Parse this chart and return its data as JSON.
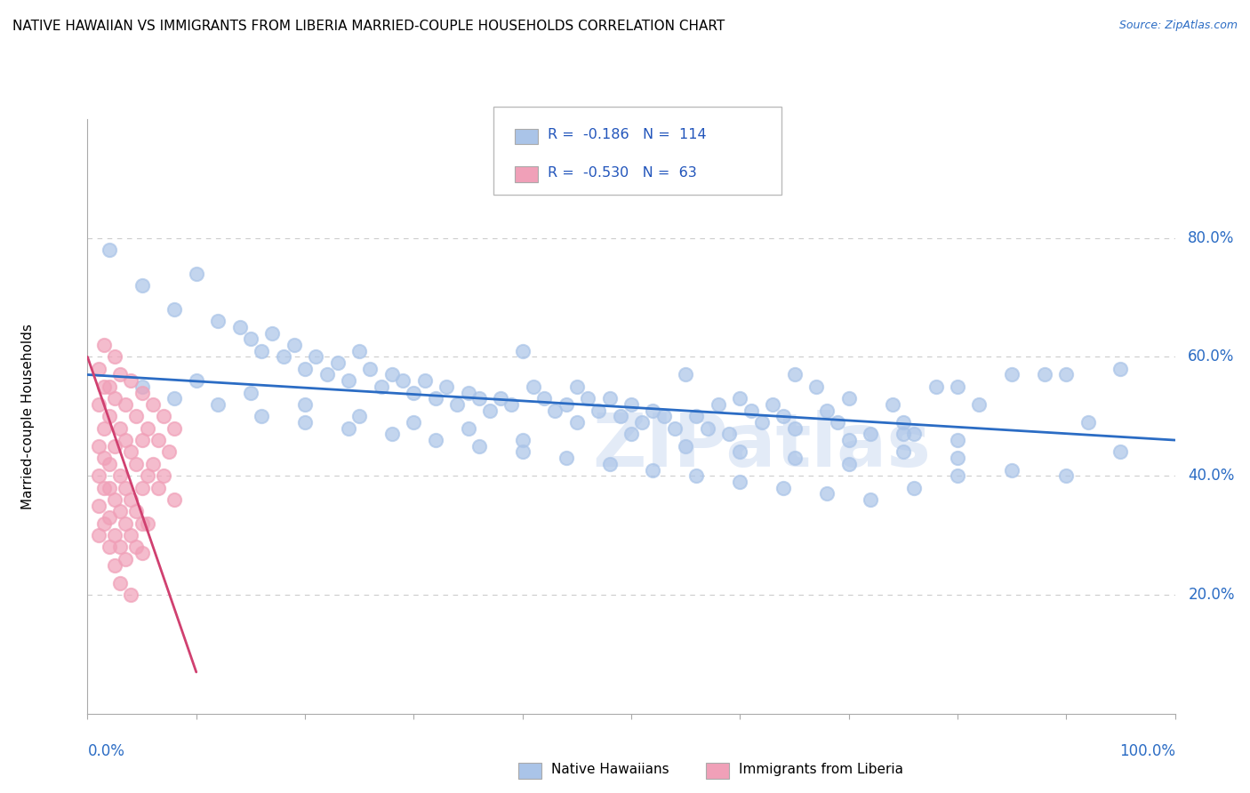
{
  "title": "NATIVE HAWAIIAN VS IMMIGRANTS FROM LIBERIA MARRIED-COUPLE HOUSEHOLDS CORRELATION CHART",
  "source": "Source: ZipAtlas.com",
  "ylabel": "Married-couple Households",
  "legend_r1_val": "-0.186",
  "legend_n1_val": "114",
  "legend_r2_val": "-0.530",
  "legend_n2_val": "63",
  "blue_color": "#aac4e8",
  "pink_color": "#f0a0b8",
  "blue_line_color": "#2b6cc4",
  "pink_line_color": "#d04070",
  "watermark": "ZIPatlas",
  "blue_scatter": [
    [
      2,
      78
    ],
    [
      5,
      72
    ],
    [
      8,
      68
    ],
    [
      10,
      74
    ],
    [
      12,
      66
    ],
    [
      14,
      65
    ],
    [
      15,
      63
    ],
    [
      16,
      61
    ],
    [
      17,
      64
    ],
    [
      18,
      60
    ],
    [
      19,
      62
    ],
    [
      20,
      58
    ],
    [
      21,
      60
    ],
    [
      22,
      57
    ],
    [
      23,
      59
    ],
    [
      24,
      56
    ],
    [
      25,
      61
    ],
    [
      26,
      58
    ],
    [
      27,
      55
    ],
    [
      28,
      57
    ],
    [
      29,
      56
    ],
    [
      30,
      54
    ],
    [
      31,
      56
    ],
    [
      32,
      53
    ],
    [
      33,
      55
    ],
    [
      34,
      52
    ],
    [
      35,
      54
    ],
    [
      36,
      53
    ],
    [
      37,
      51
    ],
    [
      38,
      53
    ],
    [
      39,
      52
    ],
    [
      40,
      61
    ],
    [
      41,
      55
    ],
    [
      42,
      53
    ],
    [
      43,
      51
    ],
    [
      44,
      52
    ],
    [
      45,
      55
    ],
    [
      46,
      53
    ],
    [
      47,
      51
    ],
    [
      48,
      53
    ],
    [
      49,
      50
    ],
    [
      50,
      52
    ],
    [
      51,
      49
    ],
    [
      52,
      51
    ],
    [
      53,
      50
    ],
    [
      54,
      48
    ],
    [
      55,
      57
    ],
    [
      56,
      50
    ],
    [
      57,
      48
    ],
    [
      58,
      52
    ],
    [
      59,
      47
    ],
    [
      60,
      53
    ],
    [
      61,
      51
    ],
    [
      62,
      49
    ],
    [
      63,
      52
    ],
    [
      64,
      50
    ],
    [
      65,
      57
    ],
    [
      67,
      55
    ],
    [
      68,
      51
    ],
    [
      69,
      49
    ],
    [
      70,
      53
    ],
    [
      72,
      47
    ],
    [
      74,
      52
    ],
    [
      75,
      49
    ],
    [
      76,
      47
    ],
    [
      78,
      55
    ],
    [
      80,
      55
    ],
    [
      82,
      52
    ],
    [
      85,
      57
    ],
    [
      88,
      57
    ],
    [
      90,
      57
    ],
    [
      92,
      49
    ],
    [
      95,
      58
    ],
    [
      10,
      56
    ],
    [
      15,
      54
    ],
    [
      20,
      52
    ],
    [
      25,
      50
    ],
    [
      30,
      49
    ],
    [
      35,
      48
    ],
    [
      40,
      46
    ],
    [
      45,
      49
    ],
    [
      50,
      47
    ],
    [
      55,
      45
    ],
    [
      60,
      44
    ],
    [
      65,
      43
    ],
    [
      70,
      42
    ],
    [
      75,
      44
    ],
    [
      80,
      43
    ],
    [
      85,
      41
    ],
    [
      90,
      40
    ],
    [
      95,
      44
    ],
    [
      5,
      55
    ],
    [
      8,
      53
    ],
    [
      12,
      52
    ],
    [
      16,
      50
    ],
    [
      20,
      49
    ],
    [
      24,
      48
    ],
    [
      28,
      47
    ],
    [
      32,
      46
    ],
    [
      36,
      45
    ],
    [
      40,
      44
    ],
    [
      44,
      43
    ],
    [
      48,
      42
    ],
    [
      52,
      41
    ],
    [
      56,
      40
    ],
    [
      60,
      39
    ],
    [
      64,
      38
    ],
    [
      68,
      37
    ],
    [
      72,
      36
    ],
    [
      76,
      38
    ],
    [
      80,
      40
    ],
    [
      65,
      48
    ],
    [
      70,
      46
    ],
    [
      75,
      47
    ],
    [
      80,
      46
    ]
  ],
  "pink_scatter": [
    [
      1,
      58
    ],
    [
      1.5,
      62
    ],
    [
      2,
      55
    ],
    [
      2.5,
      60
    ],
    [
      3,
      57
    ],
    [
      3.5,
      52
    ],
    [
      4,
      56
    ],
    [
      4.5,
      50
    ],
    [
      5,
      54
    ],
    [
      5.5,
      48
    ],
    [
      6,
      52
    ],
    [
      6.5,
      46
    ],
    [
      7,
      50
    ],
    [
      7.5,
      44
    ],
    [
      8,
      48
    ],
    [
      1,
      52
    ],
    [
      1.5,
      55
    ],
    [
      2,
      50
    ],
    [
      2.5,
      53
    ],
    [
      3,
      48
    ],
    [
      3.5,
      46
    ],
    [
      4,
      44
    ],
    [
      4.5,
      42
    ],
    [
      5,
      46
    ],
    [
      5.5,
      40
    ],
    [
      6,
      42
    ],
    [
      6.5,
      38
    ],
    [
      7,
      40
    ],
    [
      8,
      36
    ],
    [
      1,
      45
    ],
    [
      1.5,
      48
    ],
    [
      2,
      42
    ],
    [
      2.5,
      45
    ],
    [
      3,
      40
    ],
    [
      3.5,
      38
    ],
    [
      4,
      36
    ],
    [
      4.5,
      34
    ],
    [
      5,
      38
    ],
    [
      5.5,
      32
    ],
    [
      1,
      40
    ],
    [
      1.5,
      43
    ],
    [
      2,
      38
    ],
    [
      2.5,
      36
    ],
    [
      3,
      34
    ],
    [
      3.5,
      32
    ],
    [
      4,
      30
    ],
    [
      4.5,
      28
    ],
    [
      5,
      32
    ],
    [
      1,
      35
    ],
    [
      1.5,
      38
    ],
    [
      2,
      33
    ],
    [
      2.5,
      30
    ],
    [
      3,
      28
    ],
    [
      3.5,
      26
    ],
    [
      1,
      30
    ],
    [
      1.5,
      32
    ],
    [
      2,
      28
    ],
    [
      2.5,
      25
    ],
    [
      3,
      22
    ],
    [
      4,
      20
    ],
    [
      5,
      27
    ]
  ],
  "blue_line_x": [
    0,
    100
  ],
  "blue_line_y": [
    57.0,
    46.0
  ],
  "pink_line_x": [
    0,
    10
  ],
  "pink_line_y": [
    60.0,
    7.0
  ],
  "xmin": 0,
  "xmax": 100,
  "ymin": 0,
  "ymax": 100,
  "ytick_vals": [
    20,
    40,
    60,
    80
  ],
  "ytick_labels": [
    "20.0%",
    "40.0%",
    "60.0%",
    "80.0%"
  ],
  "background_color": "#ffffff",
  "grid_color": "#cccccc"
}
